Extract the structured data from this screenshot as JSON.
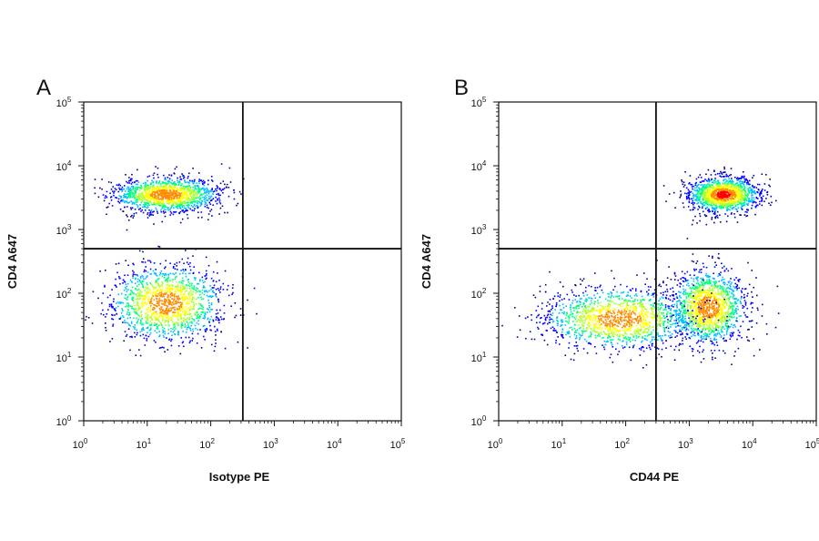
{
  "chart_data": [
    {
      "type": "scatter",
      "panel_label": "A",
      "xlabel": "Isotype PE",
      "ylabel": "CD4 A647",
      "x_scale": "log",
      "y_scale": "log",
      "xlim": [
        1,
        100000
      ],
      "ylim": [
        1,
        100000
      ],
      "x_ticks": [
        "10^0",
        "10^1",
        "10^2",
        "10^3",
        "10^4",
        "10^5"
      ],
      "y_ticks": [
        "10^0",
        "10^1",
        "10^2",
        "10^3",
        "10^4",
        "10^5"
      ],
      "quadrant_gate": {
        "x": 320,
        "y": 500
      },
      "grid": false,
      "color_map": [
        "#00008b",
        "#0000ff",
        "#00bfff",
        "#00ff7f",
        "#adff2f",
        "#ffff00",
        "#ff8c00",
        "#ff0000"
      ],
      "populations": [
        {
          "label": "CD4 high",
          "x_center": 20,
          "y_center": 3500,
          "points": [
            [
              20,
              3500
            ],
            [
              5,
              3200
            ],
            [
              60,
              3800
            ],
            [
              12,
              4500
            ],
            [
              35,
              2600
            ],
            [
              1,
              3000
            ],
            [
              80,
              3400
            ],
            [
              18,
              2000
            ],
            [
              45,
              5200
            ],
            [
              8,
              2500
            ]
          ]
        },
        {
          "label": "CD4 low",
          "x_center": 20,
          "y_center": 70,
          "points": [
            [
              20,
              70
            ],
            [
              5,
              90
            ],
            [
              60,
              60
            ],
            [
              12,
              30
            ],
            [
              35,
              120
            ],
            [
              1,
              80
            ],
            [
              80,
              40
            ],
            [
              18,
              12
            ],
            [
              45,
              200
            ],
            [
              8,
              150
            ],
            [
              25,
              8
            ],
            [
              3,
              40
            ]
          ]
        }
      ]
    },
    {
      "type": "scatter",
      "panel_label": "B",
      "xlabel": "CD44 PE",
      "ylabel": "CD4 A647",
      "x_scale": "log",
      "y_scale": "log",
      "xlim": [
        1,
        100000
      ],
      "ylim": [
        1,
        100000
      ],
      "x_ticks": [
        "10^0",
        "10^1",
        "10^2",
        "10^3",
        "10^4",
        "10^5"
      ],
      "y_ticks": [
        "10^0",
        "10^1",
        "10^2",
        "10^3",
        "10^4",
        "10^5"
      ],
      "quadrant_gate": {
        "x": 300,
        "y": 500
      },
      "grid": false,
      "color_map": [
        "#00008b",
        "#0000ff",
        "#00bfff",
        "#00ff7f",
        "#adff2f",
        "#ffff00",
        "#ff8c00",
        "#ff0000"
      ],
      "populations": [
        {
          "label": "CD4 high CD44 high",
          "x_center": 3500,
          "y_center": 3500,
          "points": [
            [
              3500,
              3500
            ],
            [
              1500,
              3000
            ],
            [
              7000,
              4200
            ],
            [
              2500,
              2200
            ],
            [
              5000,
              5500
            ],
            [
              800,
              3200
            ],
            [
              10000,
              3000
            ],
            [
              3000,
              1500
            ]
          ]
        },
        {
          "label": "CD4 low CD44 high",
          "x_center": 2000,
          "y_center": 60,
          "points": [
            [
              2000,
              60
            ],
            [
              1000,
              90
            ],
            [
              4000,
              40
            ],
            [
              700,
              150
            ],
            [
              6000,
              120
            ],
            [
              3000,
              20
            ],
            [
              1500,
              12
            ],
            [
              9000,
              70
            ]
          ]
        },
        {
          "label": "CD4 low CD44 low",
          "x_center": 80,
          "y_center": 40,
          "points": [
            [
              80,
              40
            ],
            [
              20,
              60
            ],
            [
              150,
              30
            ],
            [
              8,
              50
            ],
            [
              40,
              100
            ],
            [
              200,
              20
            ],
            [
              5,
              25
            ],
            [
              100,
              15
            ]
          ]
        }
      ]
    }
  ]
}
